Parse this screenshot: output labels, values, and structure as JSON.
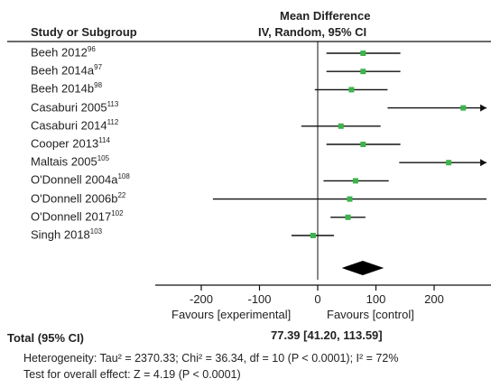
{
  "chart_data": {
    "type": "forest",
    "header": {
      "study_col": "Study or Subgroup",
      "effect_title": "Mean Difference",
      "effect_method": "IV, Random, 95% CI"
    },
    "studies": [
      {
        "name": "Beeh 2012",
        "ref": "96",
        "md": 78,
        "lo": 15,
        "hi": 142
      },
      {
        "name": "Beeh 2014a",
        "ref": "97",
        "md": 78,
        "lo": 15,
        "hi": 142
      },
      {
        "name": "Beeh 2014b",
        "ref": "98",
        "md": 58,
        "lo": -5,
        "hi": 120
      },
      {
        "name": "Casaburi 2005",
        "ref": "113",
        "md": 250,
        "lo": 120,
        "hi": 290,
        "arrow_right": true
      },
      {
        "name": "Casaburi 2014",
        "ref": "112",
        "md": 40,
        "lo": -28,
        "hi": 108
      },
      {
        "name": "Cooper 2013",
        "ref": "114",
        "md": 78,
        "lo": 15,
        "hi": 142
      },
      {
        "name": "Maltais 2005",
        "ref": "105",
        "md": 225,
        "lo": 140,
        "hi": 290,
        "arrow_right": true
      },
      {
        "name": "O'Donnell 2004a",
        "ref": "108",
        "md": 65,
        "lo": 10,
        "hi": 122
      },
      {
        "name": "O'Donnell 2006b",
        "ref": "22",
        "md": 55,
        "lo": -180,
        "hi": 290
      },
      {
        "name": "O'Donnell 2017",
        "ref": "102",
        "md": 52,
        "lo": 22,
        "hi": 82
      },
      {
        "name": "Singh 2018",
        "ref": "103",
        "md": -8,
        "lo": -45,
        "hi": 28
      }
    ],
    "total": {
      "label": "Total (95% CI)",
      "md": 77.39,
      "lo": 41.2,
      "hi": 113.59,
      "text": "77.39 [41.20, 113.59]"
    },
    "x_ticks": [
      -200,
      -100,
      0,
      100,
      200
    ],
    "x_tick_labels": [
      "-200",
      "-100",
      "0",
      "100",
      "200"
    ],
    "xlim": [
      -270,
      290
    ],
    "favours_left": "Favours [experimental]",
    "favours_right": "Favours [control]",
    "heterogeneity": "Heterogeneity: Tau² = 2370.33; Chi² = 36.34, df = 10 (P < 0.0001); I² = 72%",
    "overall_effect": "Test for overall effect: Z = 4.19 (P < 0.0001)",
    "colors": {
      "point": "#3cb44b",
      "line": "#111111",
      "diamond": "#000000"
    }
  }
}
